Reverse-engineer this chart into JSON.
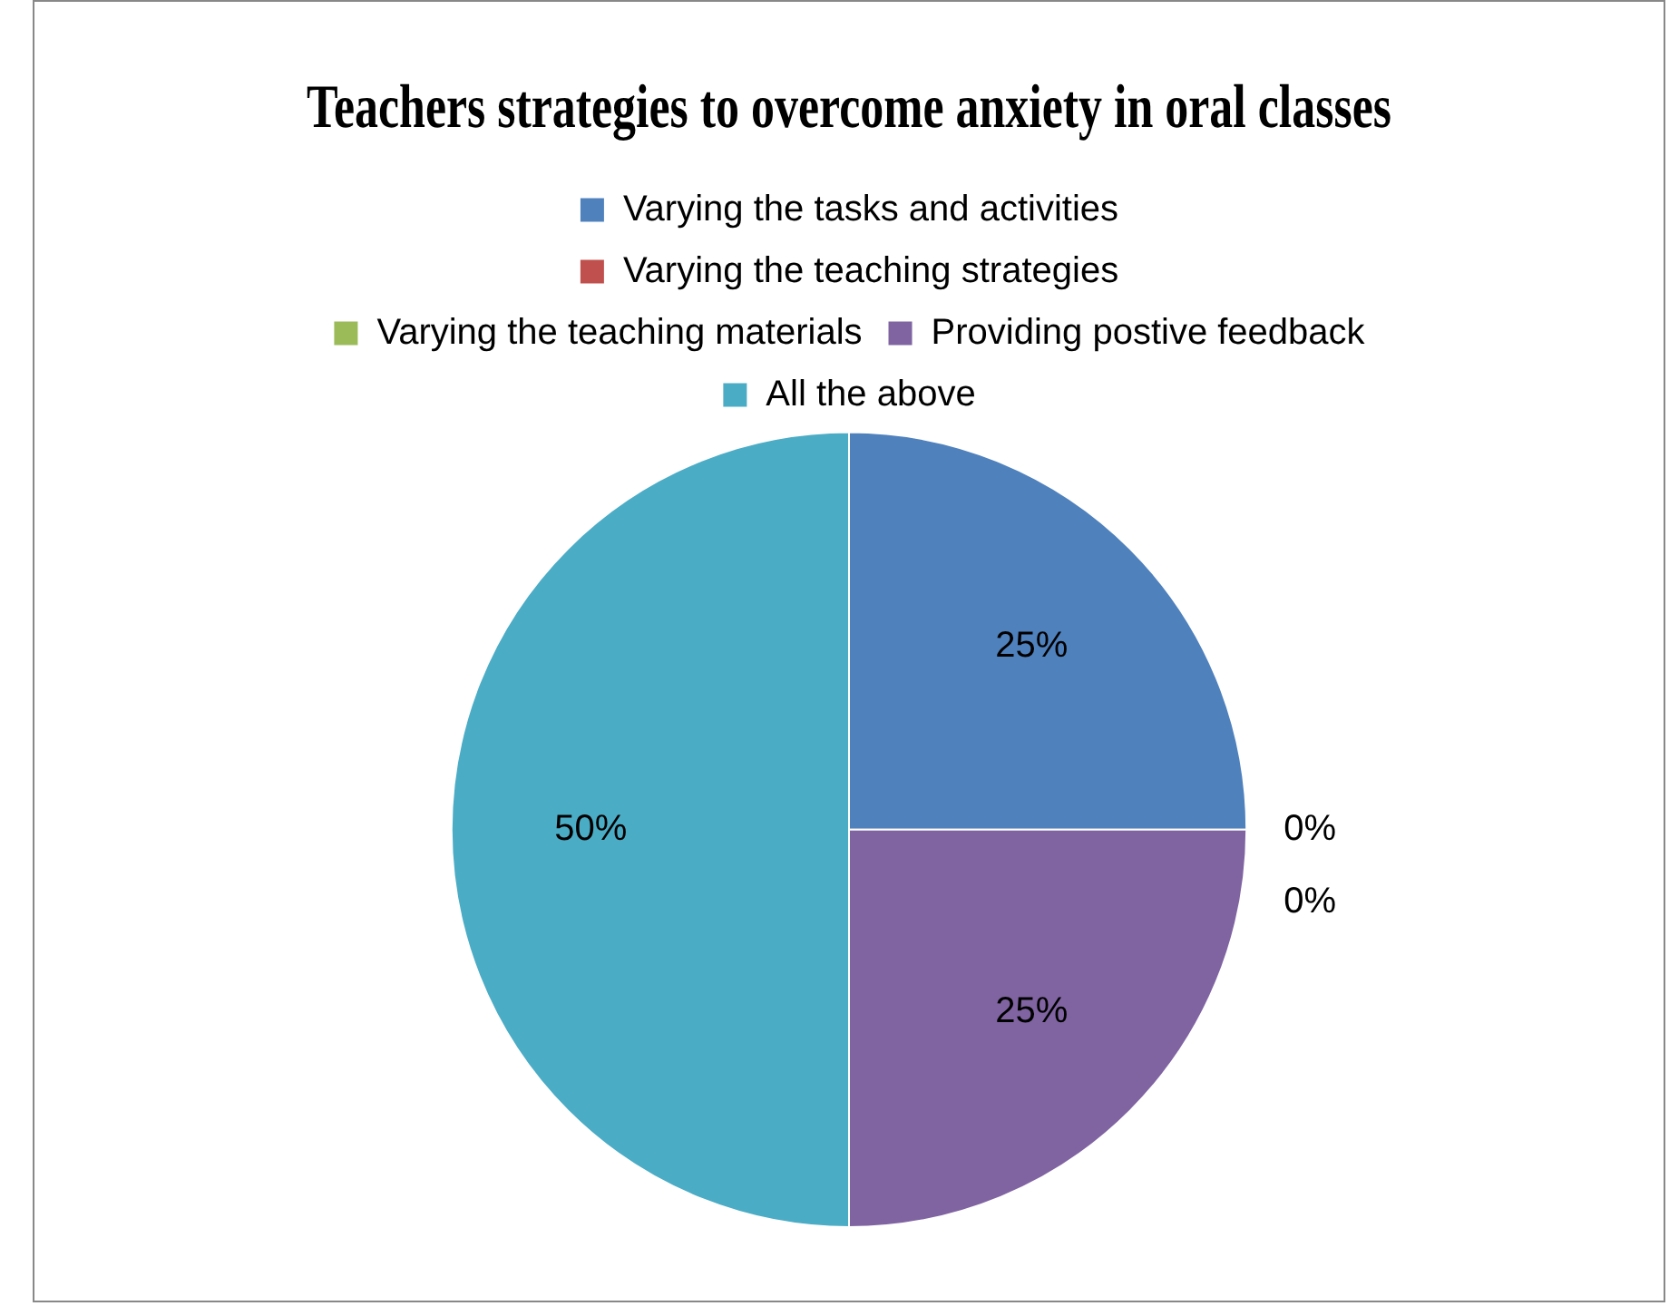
{
  "chart_data": {
    "type": "pie",
    "title": "Teachers strategies to overcome anxiety in oral classes",
    "categories": [
      "Varying the tasks and activities",
      "Varying the teaching strategies",
      "Varying the teaching materials",
      "Providing postive feedback",
      "All the above"
    ],
    "values": [
      25,
      0,
      0,
      25,
      50
    ],
    "colors": [
      "#4f81bd",
      "#c0504d",
      "#9bbb59",
      "#8064a2",
      "#4bacc6"
    ],
    "value_labels": [
      "25%",
      "0%",
      "0%",
      "25%",
      "50%"
    ],
    "legend": "top"
  }
}
